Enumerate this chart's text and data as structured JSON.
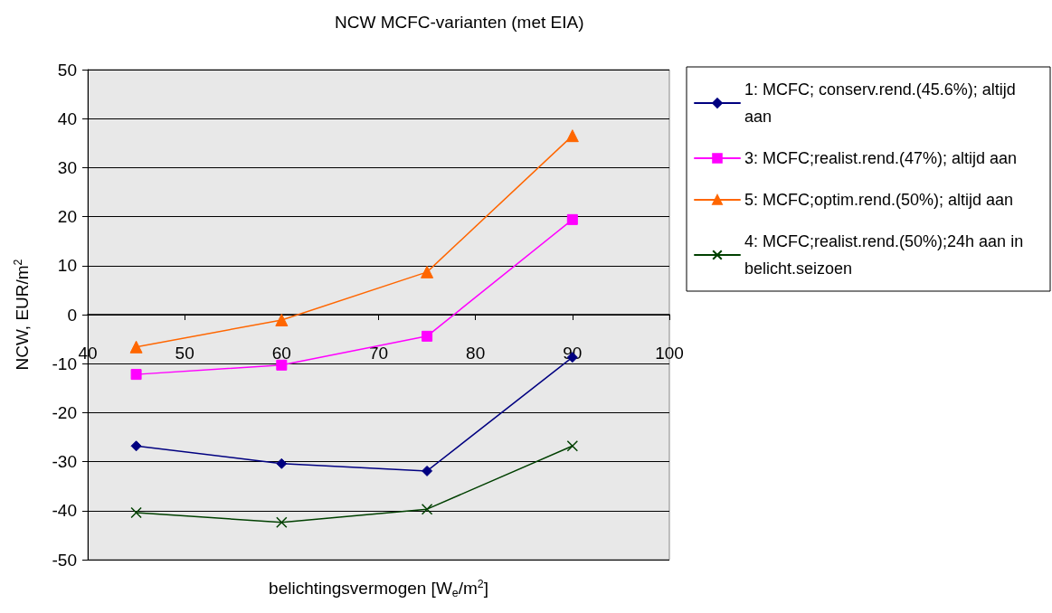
{
  "chart_data": {
    "type": "line",
    "title": "NCW MCFC-varianten (met EIA)",
    "xlabel": "belichtingsvermogen [W$_{e}$/m$^{2}$]",
    "ylabel": "NCW, EUR/m$^{2}$",
    "x": [
      45,
      60,
      75,
      90
    ],
    "series": [
      {
        "name": "1: MCFC; conserv.rend.(45.6%); altijd aan",
        "color": "#000080",
        "marker": "diamond",
        "values": [
          -26.8,
          -30.4,
          -31.9,
          -8.7
        ]
      },
      {
        "name": "3: MCFC;realist.rend.(47%); altijd aan",
        "color": "#ff00ff",
        "marker": "square",
        "values": [
          -12.2,
          -10.3,
          -4.4,
          19.4
        ]
      },
      {
        "name": "5: MCFC;optim.rend.(50%); altijd aan",
        "color": "#ff6600",
        "marker": "triangle",
        "values": [
          -6.6,
          -1.1,
          8.7,
          36.5
        ]
      },
      {
        "name": "4: MCFC;realist.rend.(50%);24h aan in belicht.seizoen",
        "color": "#004000",
        "marker": "cross",
        "values": [
          -40.4,
          -42.4,
          -39.7,
          -26.8
        ]
      }
    ],
    "xlim": [
      40,
      100
    ],
    "xticks": [
      40,
      50,
      60,
      70,
      80,
      90,
      100
    ],
    "ylim": [
      -50,
      50
    ],
    "yticks": [
      -50,
      -40,
      -30,
      -20,
      -10,
      0,
      10,
      20,
      30,
      40,
      50
    ],
    "grid": "y",
    "legend": "right",
    "line_style": "solid"
  }
}
